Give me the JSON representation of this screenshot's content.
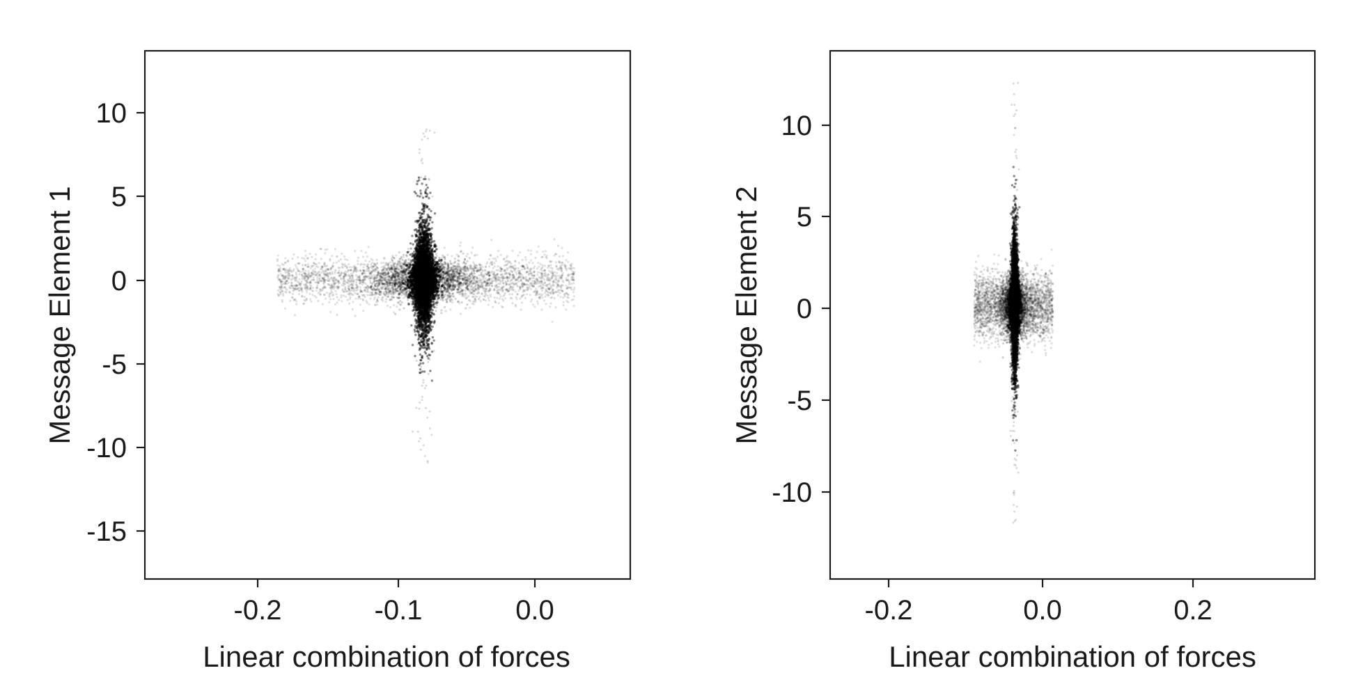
{
  "chart_data": [
    {
      "type": "scatter",
      "xlabel": "Linear combination of forces",
      "ylabel": "Message Element 1",
      "xlim": [
        -0.28,
        0.068
      ],
      "ylim": [
        -17.9,
        13.7
      ],
      "xticks": [
        -0.2,
        -0.1,
        0.0
      ],
      "xtick_labels": [
        "-0.2",
        "-0.1",
        "0.0"
      ],
      "yticks": [
        10,
        5,
        0,
        -5,
        -10,
        -15
      ],
      "ytick_labels": [
        "10",
        "5",
        "0",
        "-5",
        "-10",
        "-15"
      ],
      "grid": false,
      "legend": "none",
      "marker_color": "#000000",
      "distribution": {
        "description_values": "points concentrated near x = -0.08",
        "center_x": -0.08,
        "center_y": 0,
        "horizontal_band_x_range": [
          -0.185,
          0.028
        ],
        "horizontal_band_y_spread": 1.0,
        "vertical_spike_y_range": [
          -11,
          9
        ],
        "vertical_spike_x_spread": 0.003
      }
    },
    {
      "type": "scatter",
      "xlabel": "Linear combination of forces",
      "ylabel": "Message Element 2",
      "xlim": [
        -0.276,
        0.357
      ],
      "ylim": [
        -14.9,
        13.9
      ],
      "xticks": [
        -0.2,
        0.0,
        0.2
      ],
      "xtick_labels": [
        "-0.2",
        "0.0",
        "0.2"
      ],
      "yticks": [
        10,
        5,
        0,
        -5,
        -10
      ],
      "ytick_labels": [
        "10",
        "5",
        "0",
        "-5",
        "-10"
      ],
      "grid": false,
      "legend": "none",
      "marker_color": "#000000",
      "distribution": {
        "center_x": -0.035,
        "center_y": 0,
        "horizontal_band_x_range": [
          -0.088,
          0.015
        ],
        "horizontal_band_y_spread": 1.3,
        "vertical_spike_y_range": [
          -12,
          12.5
        ],
        "vertical_spike_x_spread": 0.002
      }
    }
  ]
}
